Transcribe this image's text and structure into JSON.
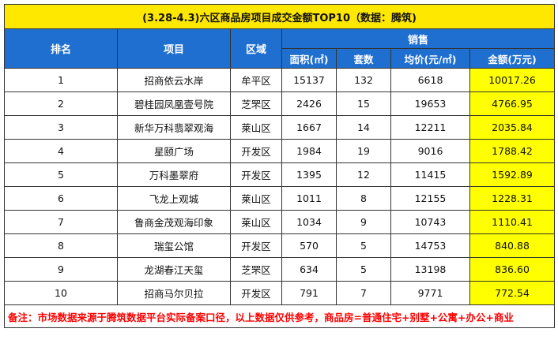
{
  "title": "(3.28-4.3)六区商品房项目成交金额TOP10（数据：腾筑)",
  "headers": {
    "rank": "排名",
    "project": "项目",
    "district": "区域",
    "sales": "销售",
    "area": "面积(㎡)",
    "units": "套数",
    "avg_price": "均价(元/㎡)",
    "amount": "金额(万元)"
  },
  "rows": [
    {
      "rank": "1",
      "project": "招商依云水岸",
      "district": "牟平区",
      "area": "15137",
      "units": "132",
      "avg_price": "6618",
      "amount": "10017.26"
    },
    {
      "rank": "2",
      "project": "碧桂园凤凰壹号院",
      "district": "芝罘区",
      "area": "2426",
      "units": "15",
      "avg_price": "19653",
      "amount": "4766.95"
    },
    {
      "rank": "3",
      "project": "新华万科翡翠观海",
      "district": "莱山区",
      "area": "1667",
      "units": "14",
      "avg_price": "12211",
      "amount": "2035.84"
    },
    {
      "rank": "4",
      "project": "星颐广场",
      "district": "开发区",
      "area": "1984",
      "units": "19",
      "avg_price": "9016",
      "amount": "1788.42"
    },
    {
      "rank": "5",
      "project": "万科墨翠府",
      "district": "开发区",
      "area": "1395",
      "units": "12",
      "avg_price": "11415",
      "amount": "1592.89"
    },
    {
      "rank": "6",
      "project": "飞龙上观城",
      "district": "莱山区",
      "area": "1011",
      "units": "8",
      "avg_price": "12155",
      "amount": "1228.31"
    },
    {
      "rank": "7",
      "project": "鲁商金茂观海印象",
      "district": "莱山区",
      "area": "1034",
      "units": "9",
      "avg_price": "10743",
      "amount": "1110.41"
    },
    {
      "rank": "8",
      "project": "瑞玺公馆",
      "district": "开发区",
      "area": "570",
      "units": "5",
      "avg_price": "14753",
      "amount": "840.88"
    },
    {
      "rank": "9",
      "project": "龙湖春江天玺",
      "district": "芝罘区",
      "area": "634",
      "units": "5",
      "avg_price": "13198",
      "amount": "836.60"
    },
    {
      "rank": "10",
      "project": "招商马尔贝拉",
      "district": "开发区",
      "area": "791",
      "units": "7",
      "avg_price": "9771",
      "amount": "772.54"
    }
  ],
  "note": "备注：市场数据来源于腾筑数据平台实际备案口径，以上数据仅供参考，商品房=普通住宅+别墅+公寓+办公+商业",
  "colors": {
    "title_bg": "#ffe800",
    "header_bg": "#1f6fd0",
    "amount_bg": "#ffff00",
    "note_text": "#ff0000"
  }
}
